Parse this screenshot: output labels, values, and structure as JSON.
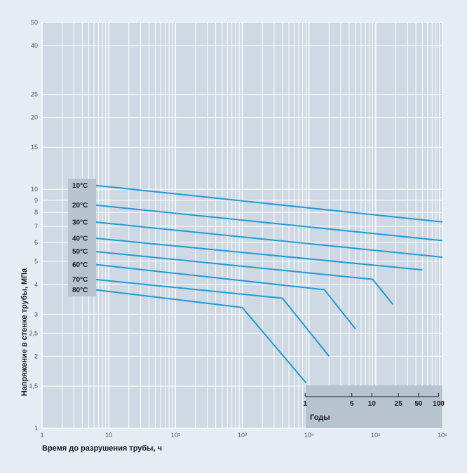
{
  "colors": {
    "background": "#e5edf4",
    "plot_area": "#ced9e3",
    "grid": "#ffffff",
    "series": "#1f9bd7",
    "label_box": "#b7c3ce",
    "axis_text": "#555555",
    "title_text": "#1a1a1a"
  },
  "chart_data": {
    "type": "line",
    "title": "",
    "xlabel": "Время до разрушения трубы, ч",
    "ylabel": "Напряжение в стенке трубы, МПа",
    "x_scale": "log",
    "y_scale": "log",
    "xlim": [
      1,
      1000000
    ],
    "ylim": [
      1,
      50
    ],
    "grid": true,
    "x_ticks": [
      {
        "value": 1,
        "label": "1"
      },
      {
        "value": 10,
        "label": "10"
      },
      {
        "value": 100,
        "label": "10²"
      },
      {
        "value": 1000,
        "label": "10³"
      },
      {
        "value": 10000,
        "label": "10⁴"
      },
      {
        "value": 100000,
        "label": "10⁵"
      },
      {
        "value": 1000000,
        "label": "10⁶"
      }
    ],
    "y_ticks": [
      {
        "value": 1,
        "label": "1"
      },
      {
        "value": 1.5,
        "label": "1,5"
      },
      {
        "value": 2,
        "label": "2"
      },
      {
        "value": 2.5,
        "label": "2,5"
      },
      {
        "value": 3,
        "label": "3"
      },
      {
        "value": 4,
        "label": "4"
      },
      {
        "value": 5,
        "label": "5"
      },
      {
        "value": 6,
        "label": "6"
      },
      {
        "value": 7,
        "label": "7"
      },
      {
        "value": 8,
        "label": "8"
      },
      {
        "value": 9,
        "label": "9"
      },
      {
        "value": 10,
        "label": "10"
      },
      {
        "value": 15,
        "label": "15"
      },
      {
        "value": 20,
        "label": "20"
      },
      {
        "value": 25,
        "label": "25"
      },
      {
        "value": 40,
        "label": "40"
      },
      {
        "value": 50,
        "label": "50"
      }
    ],
    "series": [
      {
        "name": "10°C",
        "points": [
          [
            6,
            10.4
          ],
          [
            1000000,
            7.3
          ]
        ]
      },
      {
        "name": "20°C",
        "points": [
          [
            6,
            8.6
          ],
          [
            1000000,
            6.1
          ]
        ]
      },
      {
        "name": "30°C",
        "points": [
          [
            6,
            7.3
          ],
          [
            1000000,
            5.2
          ]
        ]
      },
      {
        "name": "40°C",
        "points": [
          [
            6,
            6.25
          ],
          [
            500000,
            4.6
          ]
        ]
      },
      {
        "name": "50°C",
        "points": [
          [
            6,
            5.5
          ],
          [
            90000,
            4.2
          ],
          [
            180000,
            3.3
          ]
        ]
      },
      {
        "name": "60°C",
        "points": [
          [
            6,
            4.85
          ],
          [
            17000,
            3.8
          ],
          [
            50000,
            2.6
          ]
        ]
      },
      {
        "name": "70°C",
        "points": [
          [
            6,
            4.2
          ],
          [
            4000,
            3.5
          ],
          [
            20000,
            2.0
          ]
        ]
      },
      {
        "name": "80°C",
        "points": [
          [
            6,
            3.8
          ],
          [
            1000,
            3.2
          ],
          [
            9000,
            1.55
          ]
        ]
      }
    ],
    "secondary_x_axis": {
      "title": "Годы",
      "ticks": [
        {
          "value": 1,
          "label": "1"
        },
        {
          "value": 5,
          "label": "5"
        },
        {
          "value": 10,
          "label": "10"
        },
        {
          "value": 25,
          "label": "25"
        },
        {
          "value": 50,
          "label": "50"
        },
        {
          "value": 100,
          "label": "100"
        }
      ]
    }
  }
}
